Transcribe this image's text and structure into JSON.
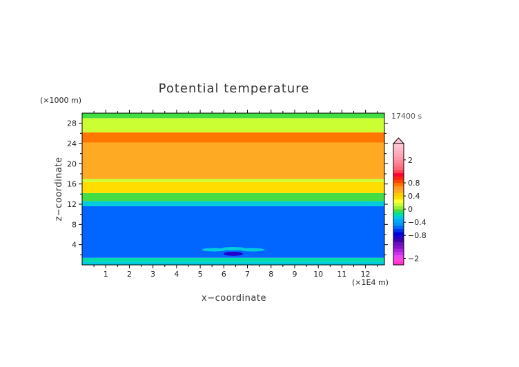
{
  "chart_data": {
    "type": "heatmap",
    "title": "Potential temperature",
    "xlabel": "x−coordinate",
    "ylabel": "z−coordinate",
    "x_unit": "(×1E4 m)",
    "y_unit": "(×1000 m)",
    "time_label": "17400 s",
    "xlim": [
      0,
      12.8
    ],
    "ylim": [
      0,
      30
    ],
    "x_ticks": [
      "1",
      "2",
      "3",
      "4",
      "5",
      "6",
      "7",
      "8",
      "9",
      "10",
      "11",
      "12"
    ],
    "y_ticks": [
      "4",
      "8",
      "12",
      "16",
      "20",
      "24",
      "28"
    ],
    "z_bands": [
      {
        "z0": 0.0,
        "z1": 0.6,
        "value": -0.3
      },
      {
        "z0": 0.6,
        "z1": 1.4,
        "value": -0.2
      },
      {
        "z0": 1.4,
        "z1": 11.6,
        "value": -0.55
      },
      {
        "z0": 11.6,
        "z1": 12.6,
        "value": -0.3
      },
      {
        "z0": 12.6,
        "z1": 14.2,
        "value": -0.1
      },
      {
        "z0": 14.2,
        "z1": 16.4,
        "value": 0.3
      },
      {
        "z0": 16.4,
        "z1": 17.0,
        "value": 0.1
      },
      {
        "z0": 17.0,
        "z1": 24.2,
        "value": 0.5
      },
      {
        "z0": 24.2,
        "z1": 26.2,
        "value": 0.7
      },
      {
        "z0": 26.2,
        "z1": 29.0,
        "value": 0.1
      },
      {
        "z0": 29.0,
        "z1": 30.0,
        "value": -0.1
      }
    ],
    "features": [
      {
        "x": 6.4,
        "z": 2.2,
        "value": -0.9
      },
      {
        "x": 6.4,
        "z": 3.2,
        "value": -0.3
      },
      {
        "x": 5.6,
        "z": 3.0,
        "value": -0.3
      },
      {
        "x": 7.2,
        "z": 3.0,
        "value": -0.3
      }
    ],
    "colorbar": {
      "levels": [
        -2.4,
        -2.2,
        -2.0,
        -1.8,
        -1.6,
        -1.4,
        -1.2,
        -1.0,
        -0.9,
        -0.8,
        -0.7,
        -0.6,
        -0.5,
        -0.4,
        -0.3,
        -0.2,
        -0.1,
        0.0,
        0.1,
        0.2,
        0.3,
        0.4,
        0.5,
        0.6,
        0.7,
        0.8,
        0.9,
        1.0,
        1.2,
        1.4,
        1.6,
        1.8,
        2.0,
        2.2,
        2.4,
        2.6,
        2.8,
        3.0
      ],
      "colors": [
        "#ff33cc",
        "#ff44dd",
        "#ee44ee",
        "#cc33ee",
        "#aa22dd",
        "#8811cc",
        "#6611bb",
        "#4400aa",
        "#2200cc",
        "#0000dd",
        "#0033ee",
        "#0066ff",
        "#0099ee",
        "#00aaff",
        "#00ccdd",
        "#00ddaa",
        "#44dd44",
        "#99ee33",
        "#ccff33",
        "#ffff33",
        "#ffdd00",
        "#ffcc00",
        "#ffaa22",
        "#ff9922",
        "#ff7700",
        "#ff4400",
        "#ff2211",
        "#ff0033",
        "#ff4455",
        "#ff6677",
        "#ff7788",
        "#ff8899",
        "#ff99aa",
        "#ffa5b5",
        "#ffb0c0",
        "#ffbcca",
        "#ffc6d2"
      ],
      "tick_labels": [
        {
          "value": -2.0,
          "label": "−2"
        },
        {
          "value": -0.8,
          "label": "−0.8"
        },
        {
          "value": -0.4,
          "label": "−0.4"
        },
        {
          "value": 0.0,
          "label": "0"
        },
        {
          "value": 0.4,
          "label": "0.4"
        },
        {
          "value": 0.8,
          "label": "0.8"
        },
        {
          "value": 2.0,
          "label": "2"
        }
      ]
    }
  }
}
